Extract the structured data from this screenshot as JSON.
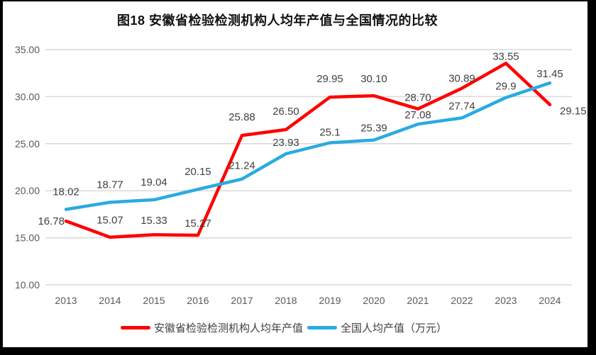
{
  "title": "图18 安徽省检验检测机构人均年产值与全国情况的比较",
  "colors": {
    "anhui_red": "#FF0000",
    "national_blue": "#29ABE2",
    "gridline": "#D9D9D9",
    "axis_label": "#595959",
    "data_label": "#404040",
    "frame": "#000000",
    "background": "#FFFFFF"
  },
  "chart_data": {
    "type": "line",
    "title": "图18 安徽省检验检测机构人均年产值与全国情况的比较",
    "categories": [
      "2013",
      "2014",
      "2015",
      "2016",
      "2017",
      "2018",
      "2019",
      "2020",
      "2021",
      "2022",
      "2023",
      "2024"
    ],
    "series": [
      {
        "name": "安徽省检验检测机构人均年产值",
        "color": "#FF0000",
        "values": [
          16.78,
          15.07,
          15.33,
          15.27,
          25.88,
          26.5,
          29.95,
          30.1,
          28.7,
          30.89,
          33.55,
          29.15
        ],
        "value_labels": [
          "16.78",
          "15.07",
          "15.33",
          "15.27",
          "25.88",
          "26.50",
          "29.95",
          "30.10",
          "28.70",
          "30.89",
          "33.55",
          "29.15"
        ],
        "label_dx": [
          -2,
          0,
          0,
          0,
          0,
          0,
          0,
          0,
          0,
          0,
          0,
          14
        ],
        "label_dy": [
          5,
          -19,
          -15,
          -12,
          -21,
          -21,
          -21,
          -19,
          -11,
          -9,
          -5,
          14
        ],
        "label_anchors": [
          "end",
          "middle",
          "middle",
          "middle",
          "middle",
          "middle",
          "middle",
          "middle",
          "middle",
          "middle",
          "middle",
          "start"
        ]
      },
      {
        "name": "全国人均产值（万元）",
        "color": "#29ABE2",
        "values": [
          18.02,
          18.77,
          19.04,
          20.15,
          21.24,
          23.93,
          25.1,
          25.39,
          27.08,
          27.74,
          29.9,
          31.45
        ],
        "value_labels": [
          "18.02",
          "18.77",
          "19.04",
          "20.15",
          "21.24",
          "23.93",
          "25.1",
          "25.39",
          "27.08",
          "27.74",
          "29.9",
          "31.45"
        ],
        "label_dx": [
          0,
          0,
          0,
          0,
          0,
          0,
          0,
          0,
          0,
          0,
          0,
          0
        ],
        "label_dy": [
          -20,
          -20,
          -20,
          -20,
          -14,
          -11,
          -10,
          -12,
          -8,
          -12,
          -11,
          -8
        ],
        "label_anchors": [
          "middle",
          "middle",
          "middle",
          "middle",
          "middle",
          "middle",
          "middle",
          "middle",
          "middle",
          "middle",
          "middle",
          "middle"
        ]
      }
    ],
    "ylim": [
      10,
      35
    ],
    "yticks": [
      {
        "value": 35,
        "label": "35.00"
      },
      {
        "value": 30,
        "label": "30.00"
      },
      {
        "value": 25,
        "label": "25.00"
      },
      {
        "value": 20,
        "label": "20.00"
      },
      {
        "value": 15,
        "label": "15.00"
      },
      {
        "value": 10,
        "label": "10.00"
      }
    ],
    "grid": "horizontal",
    "legend_position": "bottom"
  }
}
